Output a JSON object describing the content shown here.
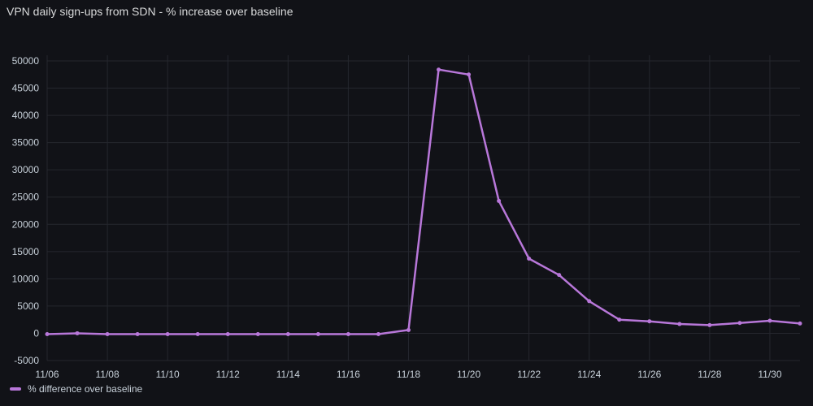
{
  "panel": {
    "title": "VPN daily sign-ups from SDN - % increase over baseline"
  },
  "legend": {
    "label": "% difference over baseline"
  },
  "colors": {
    "background": "#111217",
    "series": "#b877d9",
    "grid": "#25272e",
    "text": "#c7d0d9"
  },
  "chart_data": {
    "type": "line",
    "title": "VPN daily sign-ups from SDN - % increase over baseline",
    "xlabel": "",
    "ylabel": "",
    "ylim": [
      -5000,
      50000
    ],
    "yticks": [
      -5000,
      0,
      5000,
      10000,
      15000,
      20000,
      25000,
      30000,
      35000,
      40000,
      45000,
      50000
    ],
    "x": [
      "11/06",
      "11/07",
      "11/08",
      "11/09",
      "11/10",
      "11/11",
      "11/12",
      "11/13",
      "11/14",
      "11/15",
      "11/16",
      "11/17",
      "11/18",
      "11/19",
      "11/20",
      "11/21",
      "11/22",
      "11/23",
      "11/24",
      "11/25",
      "11/26",
      "11/27",
      "11/28",
      "11/29",
      "11/30",
      "12/01"
    ],
    "xtick_labels": [
      "11/06",
      "11/08",
      "11/10",
      "11/12",
      "11/14",
      "11/16",
      "11/18",
      "11/20",
      "11/22",
      "11/24",
      "11/26",
      "11/28",
      "11/30"
    ],
    "grid": true,
    "legend_position": "bottom-left",
    "series": [
      {
        "name": "% difference over baseline",
        "values": [
          -150,
          0,
          -150,
          -150,
          -150,
          -150,
          -150,
          -150,
          -150,
          -150,
          -150,
          -150,
          600,
          48400,
          47500,
          24300,
          13700,
          10700,
          5900,
          2500,
          2200,
          1700,
          1500,
          1900,
          2300,
          1800
        ]
      }
    ]
  }
}
